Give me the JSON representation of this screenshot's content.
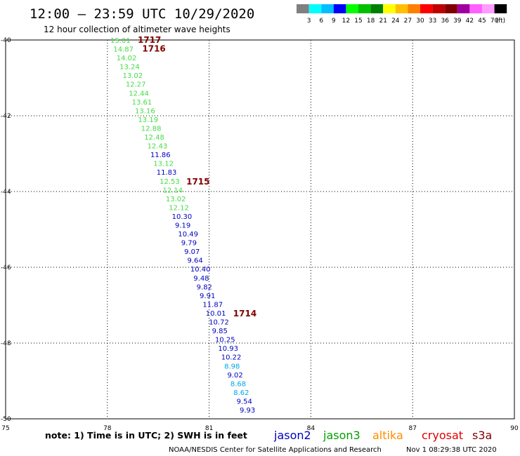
{
  "header": {
    "title": "12:00 – 23:59 UTC 10/29/2020",
    "subtitle": "12 hour collection of altimeter wave heights"
  },
  "legend_scale": {
    "labels": [
      "3",
      "6",
      "9",
      "12",
      "15",
      "18",
      "21",
      "24",
      "27",
      "30",
      "33",
      "36",
      "39",
      "42",
      "45",
      "70"
    ],
    "unit": "(ft)",
    "colors": [
      "#808080",
      "#00ffff",
      "#00bfff",
      "#0000ff",
      "#00ff00",
      "#00c000",
      "#008000",
      "#ffff00",
      "#ffc000",
      "#ff8000",
      "#ff0000",
      "#c00000",
      "#800000",
      "#a000a0",
      "#ff60ff",
      "#ff9cff",
      "#000000"
    ]
  },
  "footer": {
    "note": "note:  1) Time is in UTC; 2) SWH is in feet",
    "credit": "NOAA/NESDIS Center for Satellite Applications and Research",
    "timestamp": "Nov  1 08:29:38 UTC 2020",
    "satellites": [
      {
        "name": "jason2",
        "color": "#0000c0"
      },
      {
        "name": "jason3",
        "color": "#00a000"
      },
      {
        "name": "altika",
        "color": "#ff8c00"
      },
      {
        "name": "cryosat",
        "color": "#e00000"
      },
      {
        "name": "s3a",
        "color": "#800000"
      }
    ]
  },
  "chart_data": {
    "type": "scatter",
    "x_ticks": [
      "75",
      "78",
      "81",
      "84",
      "87",
      "90"
    ],
    "y_ticks": [
      "-40",
      "-42",
      "-44",
      "-46",
      "-48",
      "-50"
    ],
    "xlim": [
      75,
      90
    ],
    "ylim": [
      -50,
      -40
    ],
    "grid": true,
    "points": [
      {
        "lon": 80.0,
        "lat": -40.0,
        "label": "15.01",
        "color": "#44dd44"
      },
      {
        "lon": 80.0,
        "lat": -40.24,
        "label": "14.87",
        "color": "#44dd44"
      },
      {
        "lon": 80.0,
        "lat": -40.48,
        "label": "14.02",
        "color": "#44dd44"
      },
      {
        "lon": 80.0,
        "lat": -40.72,
        "label": "13.24",
        "color": "#44dd44"
      },
      {
        "lon": 80.0,
        "lat": -40.96,
        "label": "13.02",
        "color": "#44dd44"
      },
      {
        "lon": 80.0,
        "lat": -41.2,
        "label": "12.27",
        "color": "#44dd44"
      },
      {
        "lon": 80.0,
        "lat": -41.44,
        "label": "12.44",
        "color": "#44dd44"
      },
      {
        "lon": 80.0,
        "lat": -41.68,
        "label": "13.61",
        "color": "#44dd44"
      },
      {
        "lon": 80.0,
        "lat": -41.92,
        "label": "13.16",
        "color": "#44dd44"
      },
      {
        "lon": 80.0,
        "lat": -42.16,
        "label": "13.19",
        "color": "#44dd44"
      },
      {
        "lon": 80.0,
        "lat": -42.4,
        "label": "12.88",
        "color": "#44dd44"
      },
      {
        "lon": 80.0,
        "lat": -42.64,
        "label": "12.48",
        "color": "#44dd44"
      },
      {
        "lon": 80.0,
        "lat": -42.88,
        "label": "12.43",
        "color": "#44dd44"
      },
      {
        "lon": 80.0,
        "lat": -43.12,
        "label": "11.86",
        "color": "#0000c0"
      },
      {
        "lon": 80.0,
        "lat": -43.36,
        "label": "13.12",
        "color": "#44dd44"
      },
      {
        "lon": 80.0,
        "lat": -43.6,
        "label": "11.83",
        "color": "#0000c0"
      },
      {
        "lon": 80.0,
        "lat": -43.84,
        "label": "12.53",
        "color": "#44dd44"
      },
      {
        "lon": 80.0,
        "lat": -44.08,
        "label": "12.14",
        "color": "#44dd44"
      },
      {
        "lon": 80.0,
        "lat": -44.32,
        "label": "13.02",
        "color": "#44dd44"
      },
      {
        "lon": 80.0,
        "lat": -44.56,
        "label": "12.12",
        "color": "#44dd44"
      },
      {
        "lon": 80.0,
        "lat": -44.8,
        "label": "10.30",
        "color": "#0000c0"
      },
      {
        "lon": 80.0,
        "lat": -45.04,
        "label": "9.19",
        "color": "#0000c0"
      },
      {
        "lon": 80.0,
        "lat": -45.28,
        "label": "10.49",
        "color": "#0000c0"
      },
      {
        "lon": 80.0,
        "lat": -45.52,
        "label": "9.79",
        "color": "#0000c0"
      },
      {
        "lon": 80.0,
        "lat": -45.76,
        "label": "9.07",
        "color": "#0000c0"
      },
      {
        "lon": 80.0,
        "lat": -46.0,
        "label": "9.64",
        "color": "#0000c0"
      },
      {
        "lon": 80.0,
        "lat": -46.24,
        "label": "10.40",
        "color": "#0000c0"
      },
      {
        "lon": 80.0,
        "lat": -46.48,
        "label": "9.48",
        "color": "#0000c0"
      },
      {
        "lon": 80.0,
        "lat": -46.72,
        "label": "9.82",
        "color": "#0000c0"
      },
      {
        "lon": 80.0,
        "lat": -46.96,
        "label": "9.91",
        "color": "#0000c0"
      },
      {
        "lon": 80.0,
        "lat": -47.2,
        "label": "11.87",
        "color": "#0000c0"
      },
      {
        "lon": 80.0,
        "lat": -47.44,
        "label": "10.01",
        "color": "#0000c0"
      },
      {
        "lon": 80.0,
        "lat": -47.68,
        "label": "10.72",
        "color": "#0000c0"
      },
      {
        "lon": 80.0,
        "lat": -47.92,
        "label": "9.85",
        "color": "#0000c0"
      },
      {
        "lon": 80.0,
        "lat": -48.16,
        "label": "10.25",
        "color": "#0000c0"
      },
      {
        "lon": 80.0,
        "lat": -48.4,
        "label": "10.93",
        "color": "#0000c0"
      },
      {
        "lon": 80.0,
        "lat": -48.64,
        "label": "10.22",
        "color": "#0000c0"
      },
      {
        "lon": 80.0,
        "lat": -48.88,
        "label": "8.98",
        "color": "#00a8e0"
      },
      {
        "lon": 80.0,
        "lat": -49.12,
        "label": "9.02",
        "color": "#0000c0"
      },
      {
        "lon": 80.0,
        "lat": -49.36,
        "label": "8.68",
        "color": "#00a8e0"
      },
      {
        "lon": 80.0,
        "lat": -49.6,
        "label": "8.62",
        "color": "#00a8e0"
      },
      {
        "lon": 80.0,
        "lat": -49.84,
        "label": "9.54",
        "color": "#0000c0"
      },
      {
        "lon": 80.0,
        "lat": -50.08,
        "label": "9.93",
        "color": "#0000c0"
      }
    ],
    "time_labels": [
      {
        "label": "1717",
        "lat": -40.0,
        "color": "#800000"
      },
      {
        "label": "1716",
        "lat": -40.24,
        "color": "#800000"
      },
      {
        "label": "1715",
        "lat": -43.84,
        "color": "#800000"
      },
      {
        "label": "1714",
        "lat": -47.44,
        "color": "#800000"
      }
    ]
  }
}
